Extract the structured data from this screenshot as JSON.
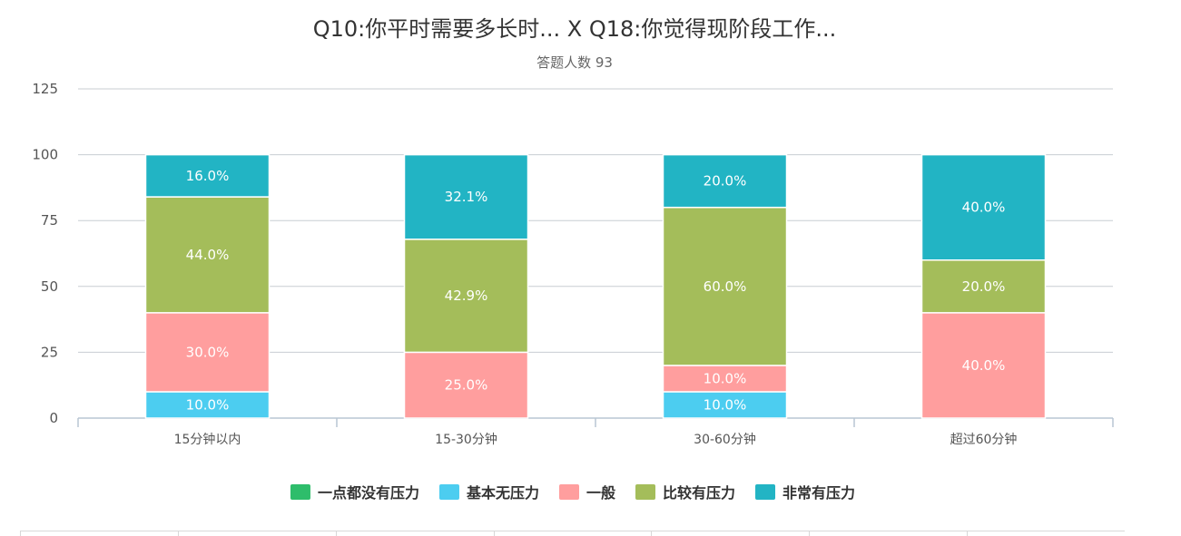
{
  "chart_data": {
    "type": "bar",
    "stacked": true,
    "title": "Q10:你平时需要多长时... X Q18:你觉得现阶段工作...",
    "subtitle": "答题人数 93",
    "categories": [
      "15分钟以内",
      "15-30分钟",
      "30-60分钟",
      "超过60分钟"
    ],
    "ylim": [
      0,
      125
    ],
    "yticks": [
      0,
      25,
      50,
      75,
      100,
      125
    ],
    "grid": true,
    "legend_position": "bottom",
    "series": [
      {
        "name": "一点都没有压力",
        "color": "#2ebd6b",
        "values": [
          0,
          0,
          0,
          0
        ]
      },
      {
        "name": "基本无压力",
        "color": "#4ccdf0",
        "values": [
          10.0,
          0,
          10.0,
          0
        ]
      },
      {
        "name": "一般",
        "color": "#ff9e9e",
        "values": [
          30.0,
          25.0,
          10.0,
          40.0
        ]
      },
      {
        "name": "比较有压力",
        "color": "#a4bd5a",
        "values": [
          44.0,
          42.9,
          60.0,
          20.0
        ]
      },
      {
        "name": "非常有压力",
        "color": "#22b4c4",
        "values": [
          16.0,
          32.1,
          20.0,
          40.0
        ]
      }
    ]
  }
}
